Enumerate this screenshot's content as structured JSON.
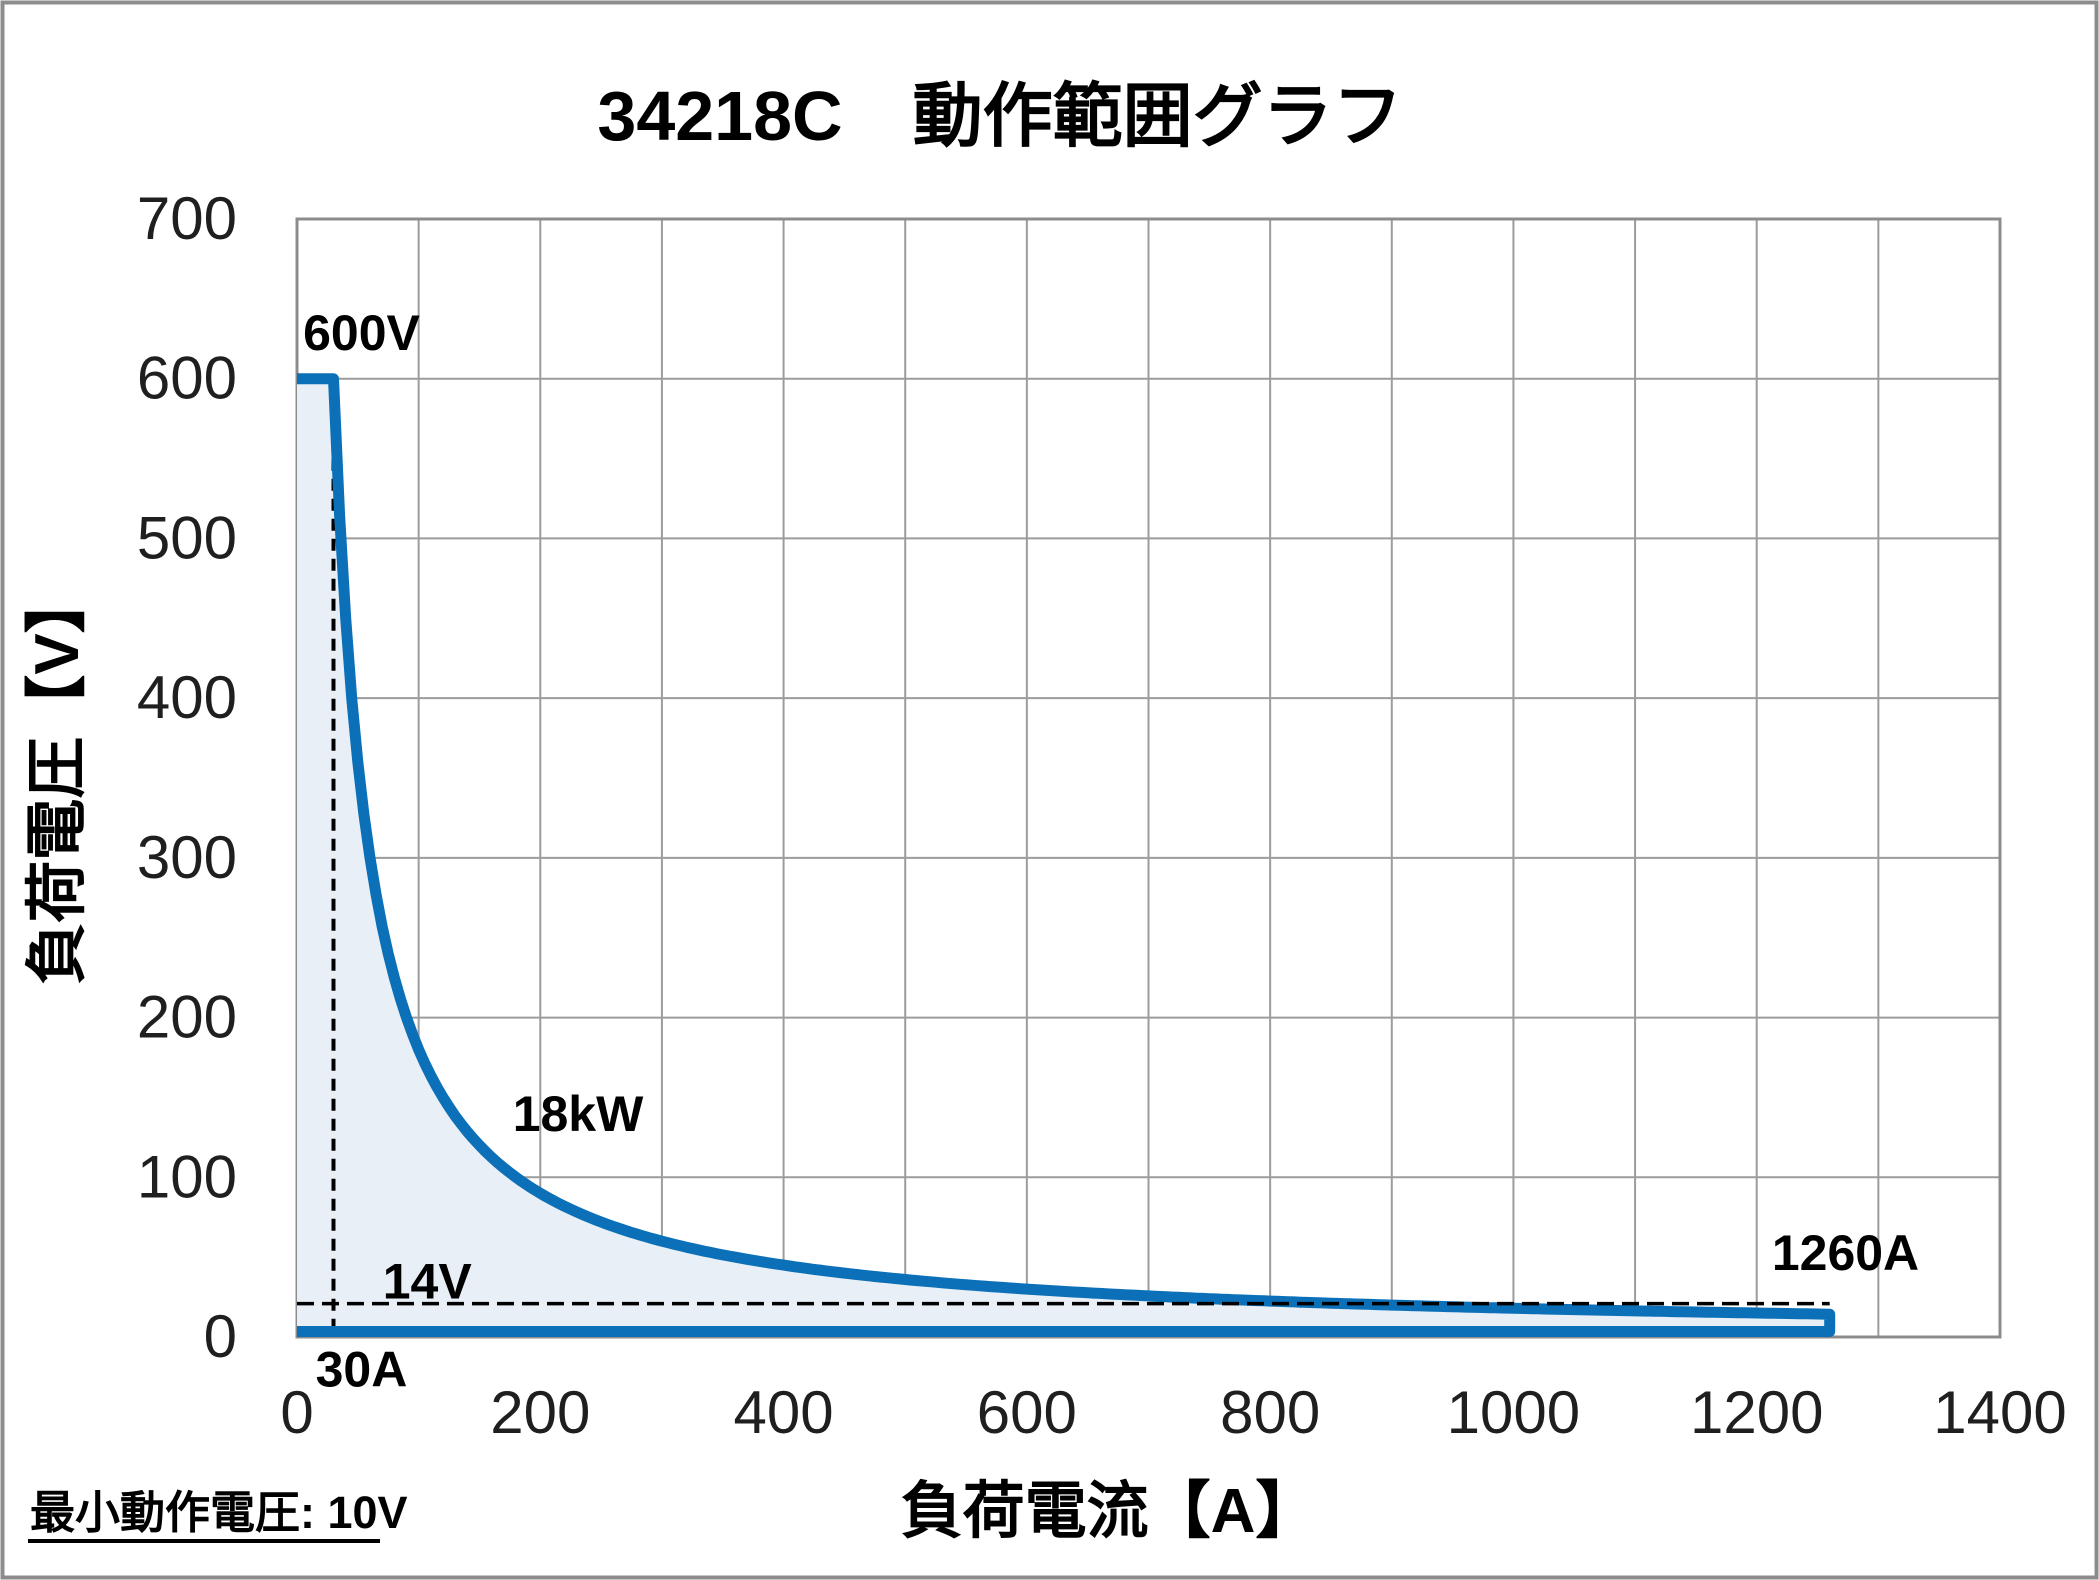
{
  "figure": {
    "background": "#ffffff",
    "border_color": "#8C8C8C"
  },
  "chart_data": {
    "type": "area",
    "title": "34218C　動作範囲グラフ",
    "xlabel": "負荷電流【A】",
    "ylabel": "負荷電圧【V】",
    "xlim": [
      0,
      1400
    ],
    "ylim": [
      0,
      700
    ],
    "x_ticks": [
      0,
      200,
      400,
      600,
      800,
      1000,
      1200,
      1400
    ],
    "y_ticks": [
      0,
      100,
      200,
      300,
      400,
      500,
      600,
      700
    ],
    "grid_step": {
      "x_a": 100,
      "y_v": 100
    },
    "grid": true,
    "legend": false,
    "boundary": {
      "max_voltage_v": 600,
      "constant_power_kw": 18,
      "corner_current_a": 30,
      "max_current_a": 1260,
      "voltage_at_max_current_v": 14
    },
    "guides": {
      "vertical_current_a": 30,
      "horizontal_voltage_v": 14
    },
    "annotations": [
      {
        "text": "600V",
        "current_a": 5,
        "voltage_v": 618,
        "anchor": "start"
      },
      {
        "text": "18kW",
        "current_a": 231,
        "voltage_v": 129,
        "anchor": "middle"
      },
      {
        "text": "14V",
        "current_a": 107,
        "voltage_v": 24,
        "anchor": "middle"
      },
      {
        "text": "30A",
        "current_a": 53,
        "voltage_v": -31,
        "anchor": "middle"
      },
      {
        "text": "1260A",
        "current_a": 1273,
        "voltage_v": 42,
        "anchor": "middle"
      }
    ],
    "colors": {
      "curve": "#0B70B8",
      "area_fill": "#E8EFF7",
      "grid": "#9C9C9C",
      "plot_border": "#8C8C8C",
      "guide": "#000000",
      "text": "#000000"
    }
  },
  "footnote": {
    "text": "最小動作電圧: 10V"
  }
}
